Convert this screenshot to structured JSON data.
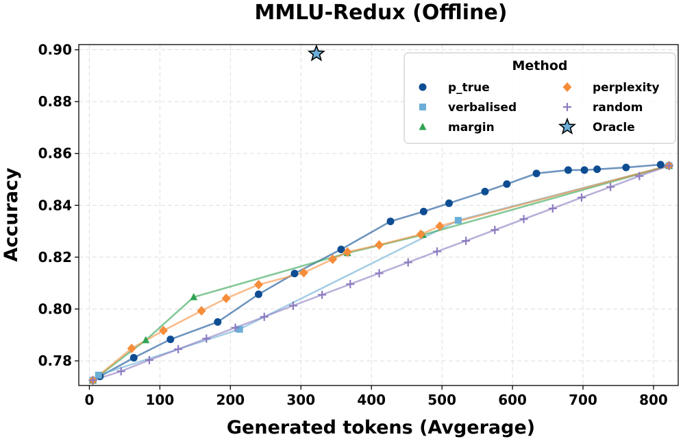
{
  "chart_data": {
    "type": "line",
    "title": "MMLU-Redux (Offline)",
    "xlabel": "Generated tokens (Avgerage)",
    "ylabel": "Accuracy",
    "xlim": [
      -15,
      835
    ],
    "ylim": [
      0.7705,
      0.902
    ],
    "xticks": [
      0,
      100,
      200,
      300,
      400,
      500,
      600,
      700,
      800
    ],
    "yticks": [
      0.78,
      0.8,
      0.82,
      0.84,
      0.86,
      0.88,
      0.9
    ],
    "ytick_labels": [
      "0.78",
      "0.80",
      "0.82",
      "0.84",
      "0.86",
      "0.88",
      "0.90"
    ],
    "grid": true,
    "legend": {
      "title": "Method",
      "placement": "top-right",
      "columns": 2
    },
    "series": [
      {
        "name": "p_true",
        "color": "#0e4d92",
        "marker": "circle",
        "points": [
          [
            5,
            0.7725
          ],
          [
            15,
            0.774
          ],
          [
            63,
            0.7812
          ],
          [
            115,
            0.7883
          ],
          [
            182,
            0.795
          ],
          [
            240,
            0.8057
          ],
          [
            291,
            0.8137
          ],
          [
            357,
            0.823
          ],
          [
            427,
            0.8338
          ],
          [
            474,
            0.8376
          ],
          [
            510,
            0.8408
          ],
          [
            561,
            0.8453
          ],
          [
            592,
            0.8482
          ],
          [
            634,
            0.8523
          ],
          [
            679,
            0.8536
          ],
          [
            702,
            0.8536
          ],
          [
            720,
            0.8539
          ],
          [
            761,
            0.8546
          ],
          [
            810,
            0.8557
          ],
          [
            822,
            0.8553
          ]
        ]
      },
      {
        "name": "verbalised",
        "color": "#6baed6",
        "marker": "square",
        "points": [
          [
            5,
            0.7725
          ],
          [
            13,
            0.7745
          ],
          [
            213,
            0.7922
          ],
          [
            523,
            0.8342
          ],
          [
            822,
            0.8553
          ]
        ]
      },
      {
        "name": "margin",
        "color": "#31a354",
        "marker": "triangle",
        "points": [
          [
            5,
            0.7725
          ],
          [
            80,
            0.788
          ],
          [
            148,
            0.8046
          ],
          [
            366,
            0.8216
          ],
          [
            473,
            0.8286
          ],
          [
            822,
            0.8553
          ]
        ]
      },
      {
        "name": "perplexity",
        "color": "#f58d3a",
        "marker": "diamond",
        "points": [
          [
            5,
            0.7725
          ],
          [
            60,
            0.7848
          ],
          [
            105,
            0.7917
          ],
          [
            159,
            0.7993
          ],
          [
            194,
            0.8041
          ],
          [
            240,
            0.8094
          ],
          [
            304,
            0.814
          ],
          [
            345,
            0.8192
          ],
          [
            366,
            0.822
          ],
          [
            411,
            0.8247
          ],
          [
            470,
            0.8288
          ],
          [
            497,
            0.832
          ],
          [
            822,
            0.8553
          ]
        ]
      },
      {
        "name": "random",
        "color": "#8c7bbf",
        "marker": "plus",
        "points": [
          [
            5,
            0.7725
          ],
          [
            45,
            0.776
          ],
          [
            85,
            0.7803
          ],
          [
            126,
            0.7845
          ],
          [
            166,
            0.7886
          ],
          [
            207,
            0.7928
          ],
          [
            248,
            0.797
          ],
          [
            289,
            0.8013
          ],
          [
            330,
            0.8055
          ],
          [
            370,
            0.8096
          ],
          [
            411,
            0.8138
          ],
          [
            452,
            0.818
          ],
          [
            493,
            0.8222
          ],
          [
            534,
            0.8263
          ],
          [
            575,
            0.8305
          ],
          [
            616,
            0.8347
          ],
          [
            657,
            0.8388
          ],
          [
            698,
            0.843
          ],
          [
            739,
            0.8471
          ],
          [
            780,
            0.8513
          ],
          [
            822,
            0.8553
          ]
        ]
      },
      {
        "name": "Oracle",
        "color": "#6baed6",
        "marker": "star",
        "points": [
          [
            322,
            0.8985
          ]
        ]
      }
    ]
  }
}
